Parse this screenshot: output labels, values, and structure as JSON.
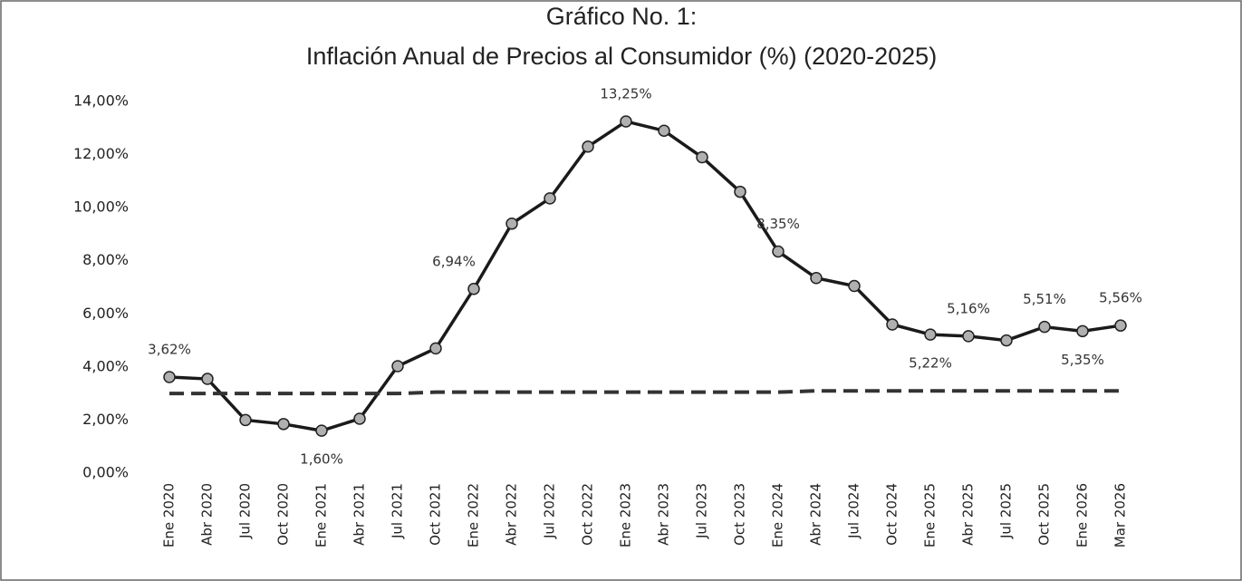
{
  "chart_data": {
    "type": "line",
    "title": "Gráfico No. 1:",
    "subtitle": "Inflación Anual de Precios al Consumidor (%) (2020-2025)",
    "categories": [
      "Ene 2020",
      "Abr 2020",
      "Jul 2020",
      "Oct 2020",
      "Ene 2021",
      "Abr 2021",
      "Jul 2021",
      "Oct 2021",
      "Ene 2022",
      "Abr 2022",
      "Jul 2022",
      "Oct 2022",
      "Ene 2023",
      "Abr 2023",
      "Jul 2023",
      "Oct 2023",
      "Ene 2024",
      "Abr 2024",
      "Jul 2024",
      "Oct 2024",
      "Ene 2025",
      "Abr 2025",
      "Jul 2025",
      "Oct 2025",
      "Ene 2026",
      "Mar 2026"
    ],
    "series": [
      {
        "color": "#1a1a1a",
        "marker": true,
        "values": [
          3.62,
          3.55,
          2.0,
          1.85,
          1.6,
          2.05,
          4.03,
          4.7,
          6.94,
          9.4,
          10.35,
          12.3,
          13.25,
          12.9,
          11.9,
          10.6,
          8.35,
          7.35,
          7.05,
          5.6,
          5.22,
          5.16,
          5.0,
          5.51,
          5.35,
          5.56
        ],
        "value_labels": [
          "3,62%",
          null,
          null,
          null,
          "1,60%",
          null,
          null,
          null,
          "6,94%",
          null,
          null,
          null,
          "13,25%",
          null,
          null,
          null,
          "8,35%",
          null,
          null,
          null,
          "5,22%",
          "5,16%",
          null,
          "5,51%",
          "5,35%",
          "5,56%"
        ]
      },
      {
        "color": "#333333",
        "dashed": true,
        "values": [
          3.0,
          3.0,
          3.0,
          3.0,
          3.0,
          3.0,
          3.0,
          3.05,
          3.05,
          3.05,
          3.05,
          3.05,
          3.05,
          3.05,
          3.05,
          3.05,
          3.05,
          3.1,
          3.1,
          3.1,
          3.1,
          3.1,
          3.1,
          3.1,
          3.1,
          3.1
        ]
      }
    ],
    "ylim": [
      0,
      14
    ],
    "yticks": [
      {
        "value": 0,
        "label": "0,00%"
      },
      {
        "value": 2,
        "label": "2,00%"
      },
      {
        "value": 4,
        "label": "4,00%"
      },
      {
        "value": 6,
        "label": "6,00%"
      },
      {
        "value": 8,
        "label": "8,00%"
      },
      {
        "value": 10,
        "label": "10,00%"
      },
      {
        "value": 12,
        "label": "12,00%"
      },
      {
        "value": 14,
        "label": "14,00%"
      }
    ],
    "grid": false
  }
}
